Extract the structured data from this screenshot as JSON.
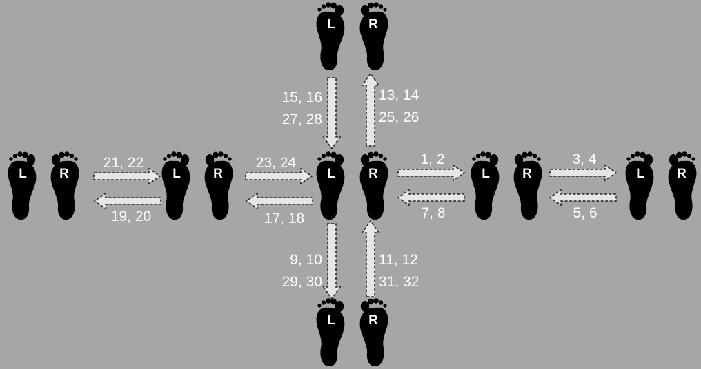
{
  "colors": {
    "background": "#a6a6a6",
    "foot": "#000000",
    "foot_letter": "#ffffff",
    "arrow_fill": "#e6e6e6",
    "arrow_border": "#262626",
    "label_text": "#ffffff"
  },
  "feet": {
    "left_letter": "L",
    "right_letter": "R"
  },
  "positions": {
    "top": "top",
    "center": "center",
    "bottom": "bottom",
    "left_1": "left-1",
    "left_2": "left-2",
    "right_1": "right-1",
    "right_2": "right-2"
  },
  "steps": {
    "center_to_right1": "1, 2",
    "right1_to_right2": "3, 4",
    "right2_to_right1": "5, 6",
    "right1_to_center": "7, 8",
    "center_to_bottom_a": "9, 10",
    "center_to_bottom_b": "29, 30",
    "bottom_to_center_a": "11, 12",
    "bottom_to_center_b": "31, 32",
    "center_to_top_a": "13, 14",
    "center_to_top_b": "25, 26",
    "top_to_center_a": "15, 16",
    "top_to_center_b": "27, 28",
    "center_to_left2": "17, 18",
    "left2_to_left1": "19, 20",
    "left1_to_left2": "21, 22",
    "left2_to_center": "23, 24"
  }
}
